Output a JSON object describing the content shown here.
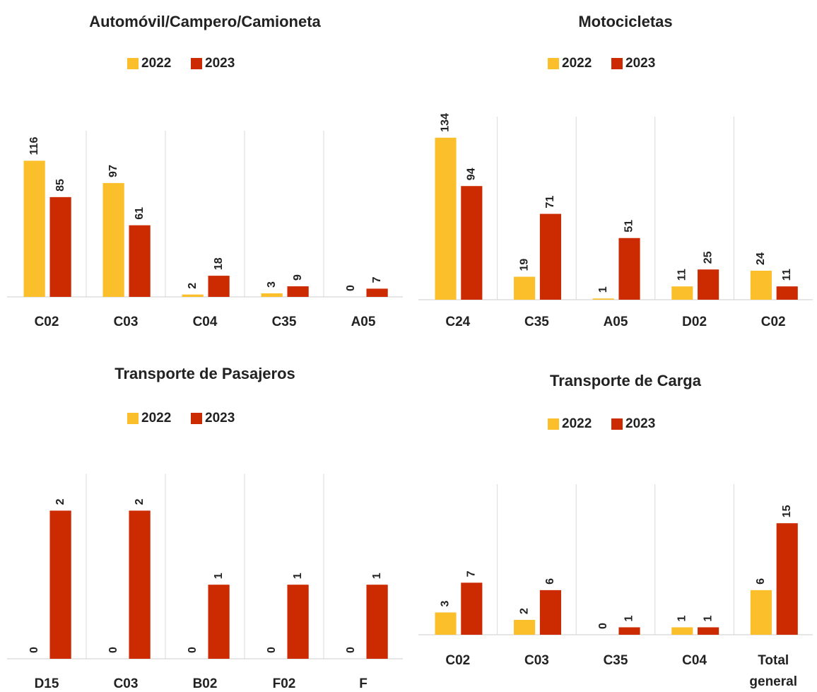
{
  "chart_data": [
    {
      "type": "bar",
      "title": "Automóvil/Campero/Camioneta",
      "categories": [
        "C02",
        "C03",
        "C04",
        "C35",
        "A05"
      ],
      "series": [
        {
          "name": "2022",
          "color": "#fbbf2b",
          "values": [
            116,
            97,
            2,
            3,
            0
          ]
        },
        {
          "name": "2023",
          "color": "#cc2a00",
          "values": [
            85,
            61,
            18,
            9,
            7
          ]
        }
      ]
    },
    {
      "type": "bar",
      "title": "Motocicletas",
      "categories": [
        "C24",
        "C35",
        "A05",
        "D02",
        "C02"
      ],
      "series": [
        {
          "name": "2022",
          "color": "#fbbf2b",
          "values": [
            134,
            19,
            1,
            11,
            24
          ]
        },
        {
          "name": "2023",
          "color": "#cc2a00",
          "values": [
            94,
            71,
            51,
            25,
            11
          ]
        }
      ]
    },
    {
      "type": "bar",
      "title": "Transporte de Pasajeros",
      "categories": [
        "D15",
        "C03",
        "B02",
        "F02",
        "F"
      ],
      "series": [
        {
          "name": "2022",
          "color": "#fbbf2b",
          "values": [
            0,
            0,
            0,
            0,
            0
          ]
        },
        {
          "name": "2023",
          "color": "#cc2a00",
          "values": [
            2,
            2,
            1,
            1,
            1
          ]
        }
      ]
    },
    {
      "type": "bar",
      "title": "Transporte de Carga",
      "categories": [
        "C02",
        "C03",
        "C35",
        "C04",
        "Total general"
      ],
      "series": [
        {
          "name": "2022",
          "color": "#fbbf2b",
          "values": [
            3,
            2,
            0,
            1,
            6
          ]
        },
        {
          "name": "2023",
          "color": "#cc2a00",
          "values": [
            7,
            6,
            1,
            1,
            15
          ]
        }
      ]
    }
  ]
}
